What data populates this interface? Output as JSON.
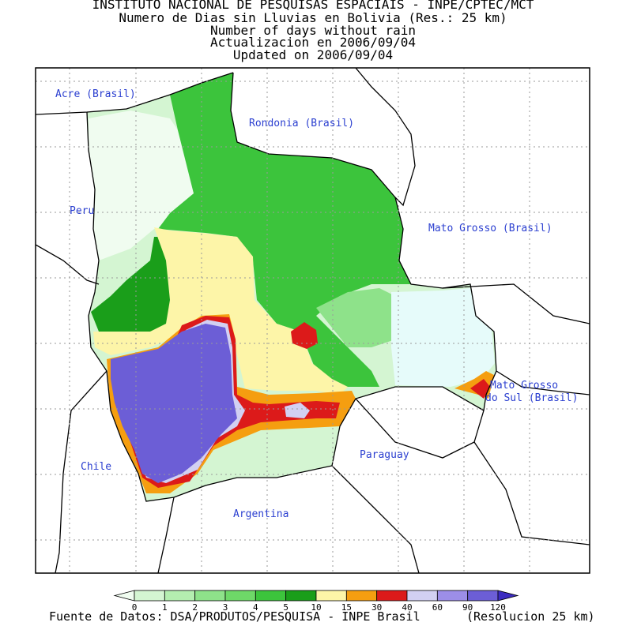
{
  "titles": [
    "INSTITUTO NACIONAL DE PESQUISAS ESPACIAIS - INPE/CPTEC/MCT",
    "Numero de Dias sin Lluvias en Bolivia (Res.: 25 km)",
    "Number of days without rain",
    "Actualizacion en 2006/09/04",
    "Updated on 2006/09/04"
  ],
  "map_labels": {
    "acre": "Acre (Brasil)",
    "rondonia": "Rondonia (Brasil)",
    "peru": "Peru",
    "mato_grosso": "Mato Grosso (Brasil)",
    "mato_grosso_sul_1": "Mato Grosso",
    "mato_grosso_sul_2": "do Sul (Brasil)",
    "paraguay": "Paraguay",
    "chile": "Chile",
    "argentina": "Argentina"
  },
  "legend": {
    "bins": [
      {
        "color": "#f0fcf0",
        "label": "0"
      },
      {
        "color": "#d4f5d2",
        "label": "1"
      },
      {
        "color": "#b4eeb0",
        "label": "2"
      },
      {
        "color": "#8ee28a",
        "label": "3"
      },
      {
        "color": "#6ed868",
        "label": "4"
      },
      {
        "color": "#3cc43c",
        "label": "5"
      },
      {
        "color": "#1a9e1a",
        "label": "10"
      },
      {
        "color": "#fdf5a8",
        "label": "15"
      },
      {
        "color": "#f59e10",
        "label": "30"
      },
      {
        "color": "#dc1a1a",
        "label": "40"
      },
      {
        "color": "#d2d0f2",
        "label": "60"
      },
      {
        "color": "#9c8ee8",
        "label": "90"
      },
      {
        "color": "#6c5ed6",
        "label": "120"
      },
      {
        "color": "#3c2cc0",
        "label": ""
      }
    ]
  },
  "footer": {
    "source": "Fuente de Datos: DSA/PRODUTOS/PESQUISA - INPE Brasil",
    "resolution": "(Resolucion 25 km)"
  },
  "colors": {
    "label_blue": "#2b3fd0",
    "grid": "#9a9a9a",
    "border": "#000000"
  }
}
